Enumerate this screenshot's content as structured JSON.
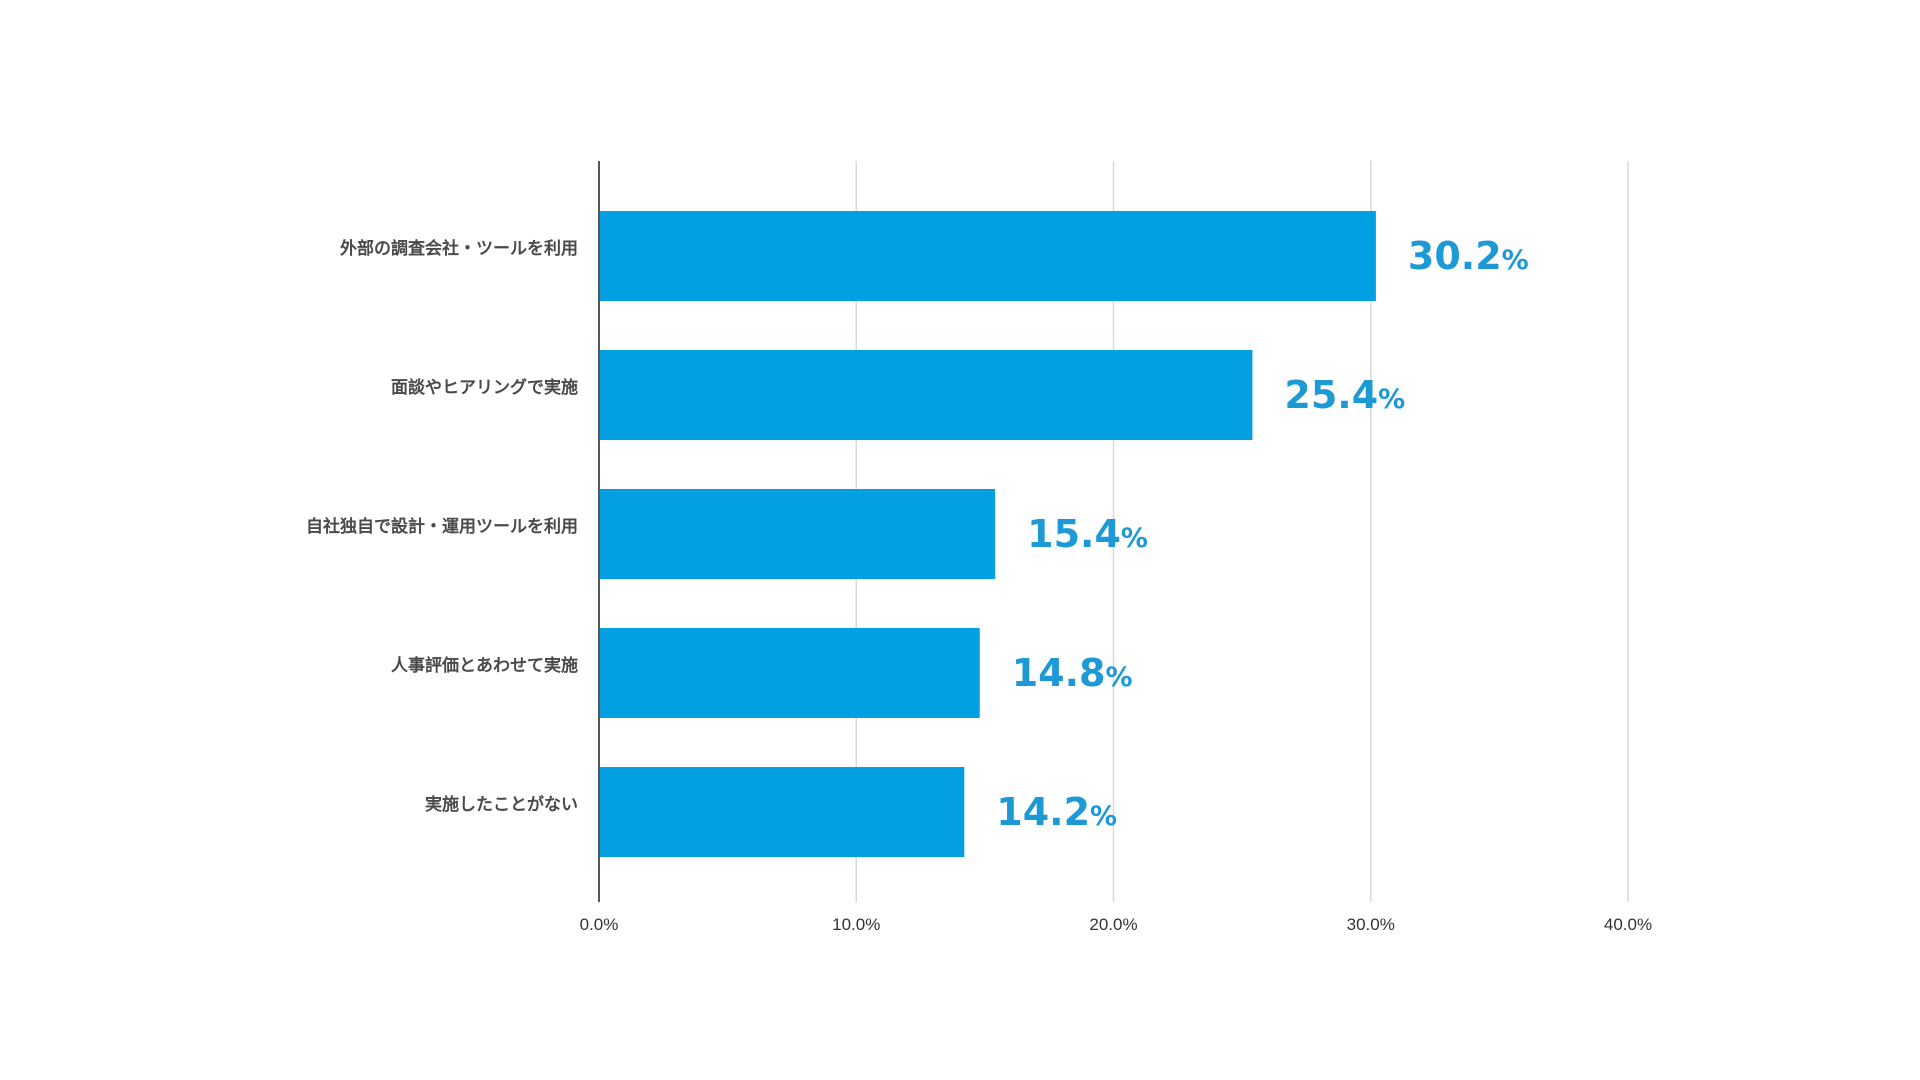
{
  "chart_data": {
    "type": "bar",
    "orientation": "horizontal",
    "categories": [
      "外部の調査会社・ツールを利用",
      "面談やヒアリングで実施",
      "自社独自で設計・運用ツールを利用",
      "人事評価とあわせて実施",
      "実施したことがない"
    ],
    "values": [
      30.2,
      25.4,
      15.4,
      14.8,
      14.2
    ],
    "data_labels": [
      "30.2",
      "25.4",
      "15.4",
      "14.8",
      "14.2"
    ],
    "data_label_unit": "%",
    "x_ticks": [
      "0.0%",
      "10.0%",
      "20.0%",
      "30.0%",
      "40.0%"
    ],
    "xlim": [
      0,
      40
    ],
    "title": "",
    "xlabel": "",
    "ylabel": "",
    "grid": "vertical",
    "legend": "none",
    "colors": {
      "bar": "#039fe3",
      "value_label": "#1d9ad6",
      "grid": "#d9d9d9",
      "axis": "#555555"
    }
  }
}
